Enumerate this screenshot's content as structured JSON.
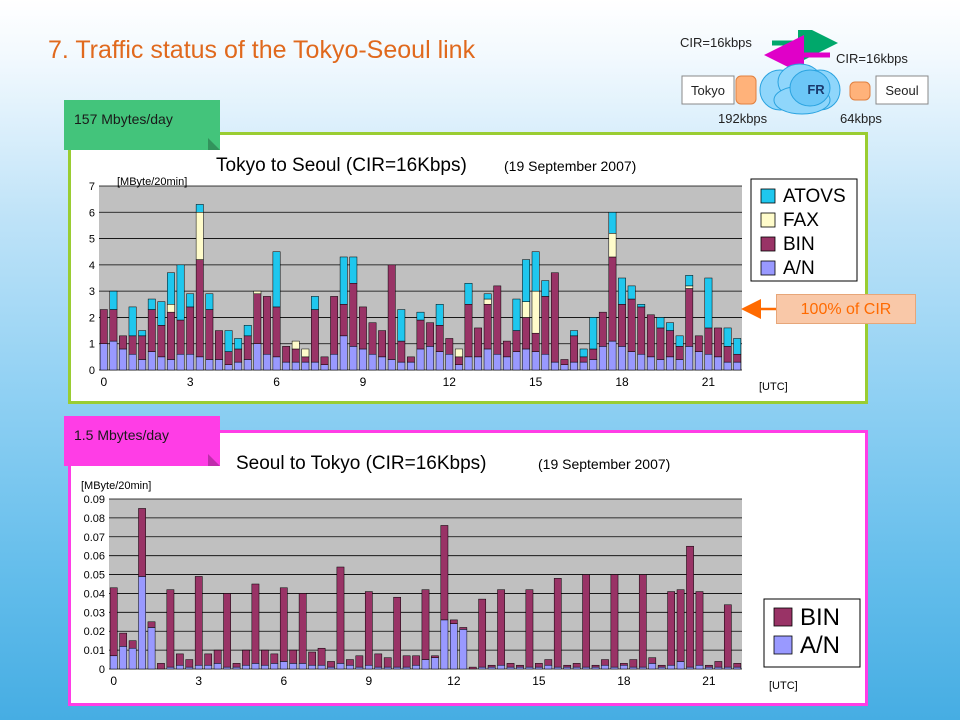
{
  "slide_title": "7.  Traffic status of the Tokyo-Seoul link",
  "colors": {
    "atovs": "#1fc7ee",
    "fax": "#fffccb",
    "bin": "#993366",
    "an": "#9999ff",
    "title_orange": "#e0691d",
    "top_border": "#9acd32",
    "bottom_border": "#ff3de6",
    "plot_bg": "#c0c0c0"
  },
  "network": {
    "tokyo": "Tokyo",
    "seoul": "Seoul",
    "fr": "FR",
    "cir_top": "CIR=16kbps",
    "cir_right": "CIR=16kbps",
    "rate_left": "192kbps",
    "rate_right": "64kbps"
  },
  "callout": "100% of CIR",
  "chart_data": [
    {
      "type": "bar",
      "stacked": true,
      "badge": "157 Mbytes/day",
      "title": "Tokyo to Seoul (CIR=16Kbps)",
      "subtitle": "(19 September 2007)",
      "ylabel": "[MByte/20min]",
      "xlabel": "[UTC]",
      "ylim": [
        0,
        7
      ],
      "yticks": [
        "0",
        "1",
        "2",
        "3",
        "4",
        "5",
        "6",
        "7"
      ],
      "xticks": [
        "0",
        "3",
        "6",
        "9",
        "12",
        "15",
        "18",
        "21"
      ],
      "legend_position": "top-right",
      "series": [
        {
          "name": "A/N",
          "color": "#9999ff",
          "values": [
            1.0,
            1.1,
            0.8,
            0.6,
            0.4,
            0.7,
            0.5,
            0.4,
            0.6,
            0.6,
            0.5,
            0.4,
            0.4,
            0.2,
            0.3,
            0.4,
            1.0,
            0.6,
            0.5,
            0.3,
            0.3,
            0.3,
            0.3,
            0.2,
            0.6,
            1.3,
            0.9,
            0.8,
            0.6,
            0.5,
            0.4,
            0.3,
            0.3,
            0.8,
            0.9,
            0.7,
            0.6,
            0.2,
            0.5,
            0.5,
            0.8,
            0.6,
            0.5,
            0.7,
            0.8,
            0.7,
            0.6,
            0.3,
            0.2,
            0.3,
            0.3,
            0.4,
            0.9,
            1.1,
            0.9,
            0.7,
            0.6,
            0.5,
            0.4,
            0.5,
            0.4,
            0.9,
            0.7,
            0.6,
            0.5,
            0.3,
            0.3
          ]
        },
        {
          "name": "BIN",
          "color": "#993366",
          "values": [
            1.3,
            1.2,
            0.5,
            0.7,
            0.9,
            1.6,
            1.2,
            1.8,
            1.3,
            1.8,
            3.7,
            1.9,
            1.1,
            0.5,
            0.5,
            0.9,
            1.9,
            2.2,
            1.9,
            0.6,
            0.5,
            0.2,
            2.0,
            0.3,
            2.2,
            1.2,
            2.4,
            1.6,
            1.2,
            1.0,
            3.6,
            0.8,
            0.2,
            1.1,
            0.9,
            1.0,
            0.6,
            0.3,
            2.0,
            1.1,
            1.7,
            2.6,
            0.6,
            0.8,
            1.2,
            0.7,
            2.2,
            3.4,
            0.2,
            1.0,
            0.2,
            0.4,
            1.3,
            3.2,
            1.6,
            2.0,
            1.8,
            1.6,
            1.2,
            1.0,
            0.5,
            2.2,
            0.6,
            1.0,
            1.1,
            0.6,
            0.3
          ]
        },
        {
          "name": "FAX",
          "color": "#fffccb",
          "values": [
            0,
            0,
            0,
            0,
            0,
            0,
            0,
            0.3,
            0,
            0,
            1.8,
            0,
            0,
            0,
            0,
            0,
            0.1,
            0,
            0,
            0,
            0.3,
            0.3,
            0,
            0,
            0,
            0,
            0,
            0,
            0,
            0,
            0,
            0,
            0,
            0,
            0,
            0,
            0,
            0.3,
            0,
            0,
            0.2,
            0,
            0,
            0,
            0.6,
            1.6,
            0,
            0,
            0,
            0,
            0,
            0,
            0,
            0.9,
            0,
            0,
            0,
            0,
            0,
            0,
            0,
            0.1,
            0,
            0,
            0,
            0,
            0
          ]
        },
        {
          "name": "ATOVS",
          "color": "#1fc7ee",
          "values": [
            0,
            0.7,
            0,
            1.1,
            0.2,
            0.4,
            0.9,
            1.2,
            2.1,
            0.5,
            0.3,
            0.6,
            0,
            0.8,
            0.4,
            0.4,
            0,
            0,
            2.1,
            0,
            0,
            0,
            0.5,
            0,
            0,
            1.8,
            1.0,
            0,
            0,
            0,
            0,
            1.2,
            0,
            0.3,
            0,
            0.8,
            0,
            0,
            0.8,
            0,
            0.2,
            0,
            0,
            1.2,
            1.6,
            1.5,
            0.6,
            0,
            0,
            0.2,
            0.3,
            1.2,
            0,
            0.8,
            1.0,
            0.5,
            0.1,
            0,
            0.4,
            0.3,
            0.4,
            0.4,
            0,
            1.9,
            0,
            0.7,
            0.6
          ]
        }
      ]
    },
    {
      "type": "bar",
      "stacked": true,
      "badge": "1.5 Mbytes/day",
      "title": "Seoul to Tokyo (CIR=16Kbps)",
      "subtitle": "(19 September 2007)",
      "ylabel": "[MByte/20min]",
      "xlabel": "[UTC]",
      "ylim": [
        0,
        0.09
      ],
      "yticks": [
        "0",
        "0.01",
        "0.02",
        "0.03",
        "0.04",
        "0.05",
        "0.06",
        "0.07",
        "0.08",
        "0.09"
      ],
      "xticks": [
        "0",
        "3",
        "6",
        "9",
        "12",
        "15",
        "18",
        "21"
      ],
      "legend_position": "bottom-right",
      "series": [
        {
          "name": "A/N",
          "color": "#9999ff",
          "values": [
            0.007,
            0.012,
            0.011,
            0.049,
            0.022,
            0,
            0.001,
            0.002,
            0.001,
            0.002,
            0.002,
            0.003,
            0.001,
            0.001,
            0.002,
            0.003,
            0.002,
            0.003,
            0.004,
            0.003,
            0.003,
            0.002,
            0.002,
            0.001,
            0.003,
            0.002,
            0.001,
            0.002,
            0.001,
            0.001,
            0.001,
            0.001,
            0.002,
            0.005,
            0.006,
            0.026,
            0.024,
            0.021,
            0,
            0.001,
            0.001,
            0.002,
            0.001,
            0.001,
            0.001,
            0.001,
            0.002,
            0.001,
            0.001,
            0.001,
            0.001,
            0.001,
            0.002,
            0.001,
            0.002,
            0.001,
            0.001,
            0.003,
            0.001,
            0.002,
            0.004,
            0.001,
            0.002,
            0.001,
            0.001,
            0.001,
            0.001
          ]
        },
        {
          "name": "BIN",
          "color": "#993366",
          "values": [
            0.036,
            0.007,
            0.004,
            0.036,
            0.003,
            0.003,
            0.041,
            0.006,
            0.004,
            0.047,
            0.006,
            0.007,
            0.039,
            0.002,
            0.008,
            0.042,
            0.008,
            0.005,
            0.039,
            0.007,
            0.037,
            0.007,
            0.009,
            0.003,
            0.051,
            0.003,
            0.006,
            0.039,
            0.007,
            0.005,
            0.037,
            0.006,
            0.005,
            0.037,
            0.001,
            0.05,
            0.002,
            0.001,
            0.001,
            0.036,
            0.001,
            0.04,
            0.002,
            0.001,
            0.041,
            0.002,
            0.003,
            0.047,
            0.001,
            0.002,
            0.049,
            0.001,
            0.003,
            0.049,
            0.001,
            0.004,
            0.049,
            0.003,
            0.001,
            0.039,
            0.038,
            0.064,
            0.039,
            0.001,
            0.003,
            0.033,
            0.002
          ]
        }
      ]
    }
  ]
}
